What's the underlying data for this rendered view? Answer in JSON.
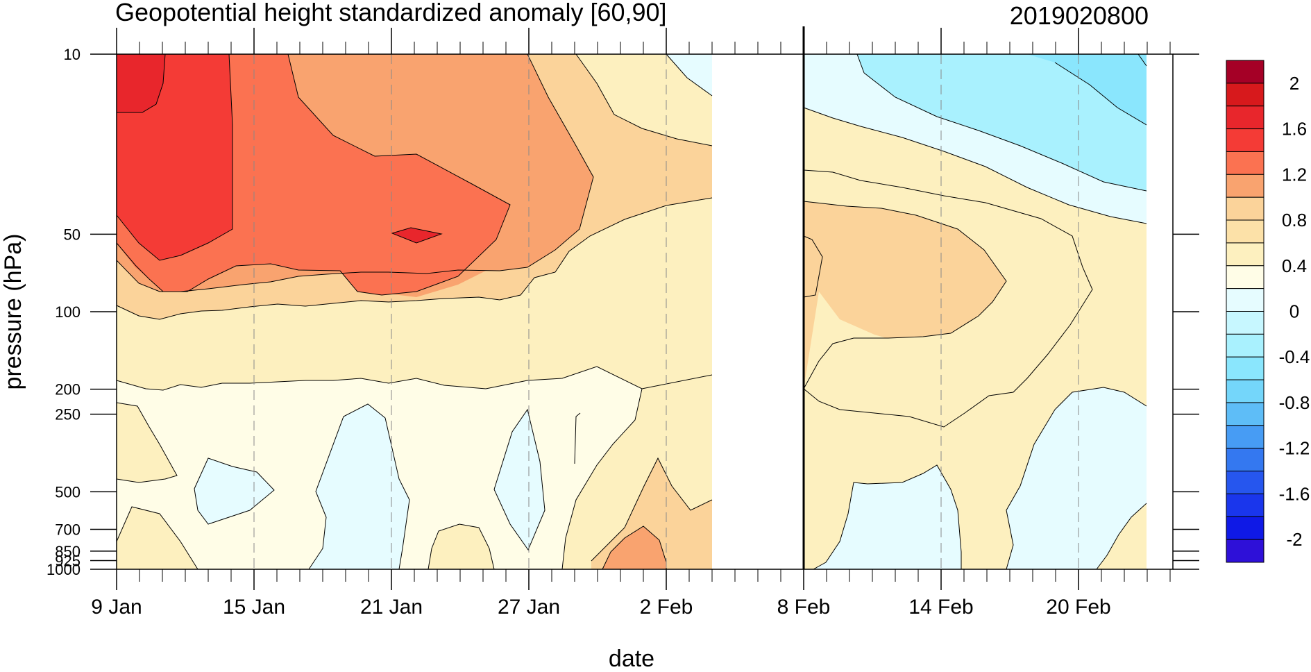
{
  "chart_data": {
    "type": "heatmap",
    "title": "Geopotential height standardized anomaly [60,90]",
    "date_label": "2019020800",
    "xlabel": "date",
    "ylabel": "pressure (hPa)",
    "y_scale": "log",
    "y_reversed": true,
    "x_range": [
      "9 Jan",
      "25 Feb"
    ],
    "y_range": [
      1000,
      10
    ],
    "pressure_ticks": [
      "10",
      "50",
      "100",
      "200",
      "250",
      "500",
      "700",
      "850",
      "925",
      "1000"
    ],
    "date_ticks": [
      "9 Jan",
      "15 Jan",
      "21 Jan",
      "27 Jan",
      "2 Feb",
      "8 Feb",
      "14 Feb",
      "20 Feb"
    ],
    "dashed_gridlines_at": [
      "15 Jan",
      "21 Jan",
      "27 Jan",
      "2 Feb",
      "14 Feb",
      "20 Feb"
    ],
    "analysis_date_line": "8 Feb",
    "data_gap": [
      "5 Feb",
      "8 Feb"
    ],
    "colorbar": {
      "labels": [
        "2",
        "1.6",
        "1.2",
        "0.8",
        "0.4",
        "0",
        "-0.4",
        "-0.8",
        "-1.2",
        "-1.6",
        "-2"
      ],
      "levels": [
        2.2,
        2.0,
        1.8,
        1.6,
        1.4,
        1.2,
        1.0,
        0.8,
        0.6,
        0.4,
        0.2,
        0.0,
        -0.2,
        -0.4,
        -0.6,
        -0.8,
        -1.0,
        -1.2,
        -1.4,
        -1.6,
        -1.8,
        -2.0,
        -2.2
      ],
      "colors": [
        "#a50026",
        "#d7191c",
        "#e8262c",
        "#f43b36",
        "#fb7251",
        "#f9a36f",
        "#fbd39a",
        "#fce1a8",
        "#fdf0bf",
        "#fffde7",
        "#e6fcff",
        "#c7f7ff",
        "#a9f1fe",
        "#8ae6fd",
        "#74d6fa",
        "#5ebdf7",
        "#479cf4",
        "#3478f0",
        "#2656ee",
        "#1a36ec",
        "#0f19e6",
        "#2e10d8"
      ]
    },
    "regions_hindcast": [
      {
        "level": 1.6,
        "color": "#f43b36",
        "dates": "9 Jan - 11 Jan",
        "pressure": "10 - 25"
      },
      {
        "level": 1.4,
        "color": "#fb5a45",
        "dates": "9 Jan - 13 Jan",
        "pressure": "10 - 60"
      },
      {
        "level": 1.2,
        "color": "#fb7251",
        "dates": "9 Jan - 29 Jan",
        "pressure": "10 - 100"
      },
      {
        "level": 1.4,
        "color": "#f43b36",
        "dates": "22 Jan",
        "pressure": "50"
      },
      {
        "level": 0.8,
        "color": "#f9a36f",
        "dates": "9 Jan - 1 Feb",
        "pressure": "10 - 150"
      },
      {
        "level": 0.6,
        "color": "#fbd39a",
        "dates": "9 Jan - 5 Feb",
        "pressure": "10 - 200"
      },
      {
        "level": -0.2,
        "color": "#e6fcff",
        "dates": "19 Jan - 21 Jan",
        "pressure": "250 - 1000"
      },
      {
        "level": -0.2,
        "color": "#e6fcff",
        "dates": "27 Jan",
        "pressure": "250 - 850"
      },
      {
        "level": -0.2,
        "color": "#e6fcff",
        "dates": "12 Jan - 16 Jan",
        "pressure": "400 - 650"
      }
    ],
    "regions_forecast": [
      {
        "level": -0.4,
        "color": "#a9f1fe",
        "dates": "11 Feb - 25 Feb",
        "pressure": "10 - 40"
      },
      {
        "level": -0.2,
        "color": "#e6fcff",
        "dates": "8 Feb - 25 Feb",
        "pressure": "10 - 50"
      },
      {
        "level": 0.6,
        "color": "#fbd39a",
        "dates": "8 Feb - 17 Feb",
        "pressure": "50 - 150"
      },
      {
        "level": 0.2,
        "color": "#fdf0bf",
        "dates": "8 Feb - 21 Feb",
        "pressure": "30 - 250"
      },
      {
        "level": -0.2,
        "color": "#e6fcff",
        "dates": "10 Feb - 14 Feb",
        "pressure": "400 - 1000"
      },
      {
        "level": -0.2,
        "color": "#e6fcff",
        "dates": "18 Feb - 25 Feb",
        "pressure": "200 - 1000"
      }
    ]
  }
}
